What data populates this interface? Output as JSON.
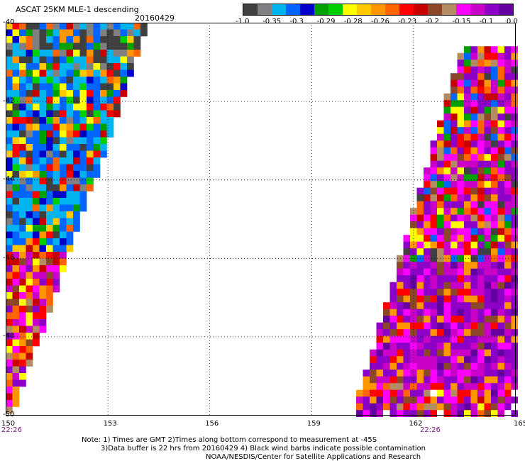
{
  "header": {
    "title": "ASCAT 25KM MLE-1 descending",
    "date": "20160429"
  },
  "colorbar": {
    "colors": [
      "#404040",
      "#808080",
      "#00b4f0",
      "#0064ff",
      "#0000c8",
      "#00a000",
      "#00d000",
      "#ffff00",
      "#ffc800",
      "#ff9600",
      "#ff6400",
      "#ff0000",
      "#c80000",
      "#8c4628",
      "#b48c64",
      "#ff00ff",
      "#c800c8",
      "#8c00c8",
      "#6400a0"
    ],
    "tick_labels": [
      "-1.0",
      "-0.35",
      "-0.3",
      "-0.29",
      "-0.28",
      "-0.26",
      "-0.23",
      "-0.2",
      "-0.15",
      "-0.1",
      "0.0"
    ]
  },
  "chart_data": {
    "type": "heatmap",
    "x_axis": {
      "range": [
        150,
        165
      ],
      "ticks": [
        "150",
        "153",
        "156",
        "159",
        "162",
        "165"
      ]
    },
    "y_axis": {
      "range": [
        -50,
        -40
      ],
      "ticks": [
        "-40",
        "-42",
        "-44",
        "-46",
        "-48",
        "-50"
      ]
    },
    "grid": true,
    "swath_times": [
      "22:26",
      "22:26"
    ],
    "swaths": [
      {
        "name": "west",
        "lon_range": [
          150,
          154.1
        ],
        "lat_range": [
          -49.8,
          -40
        ],
        "values_note": "mixed -0.35 to -0.15 in north, -0.26 to -0.1 in south"
      },
      {
        "name": "east",
        "lon_range": [
          160.3,
          165
        ],
        "lat_range": [
          -50,
          -40.6
        ],
        "values_note": "mostly -0.15 to 0.0 in south, mixed -0.28 to -0.1 in north"
      }
    ]
  },
  "notes": {
    "line1": "Note: 1) Times are GMT 2)Times along bottom correspond to measurement at -45S",
    "line2": "3)Data buffer is 22 hrs from 20160429 4) Black wind barbs indicate possible contamination",
    "line3": "NOAA/NESDIS/Center for Satellite Applications and Research"
  }
}
